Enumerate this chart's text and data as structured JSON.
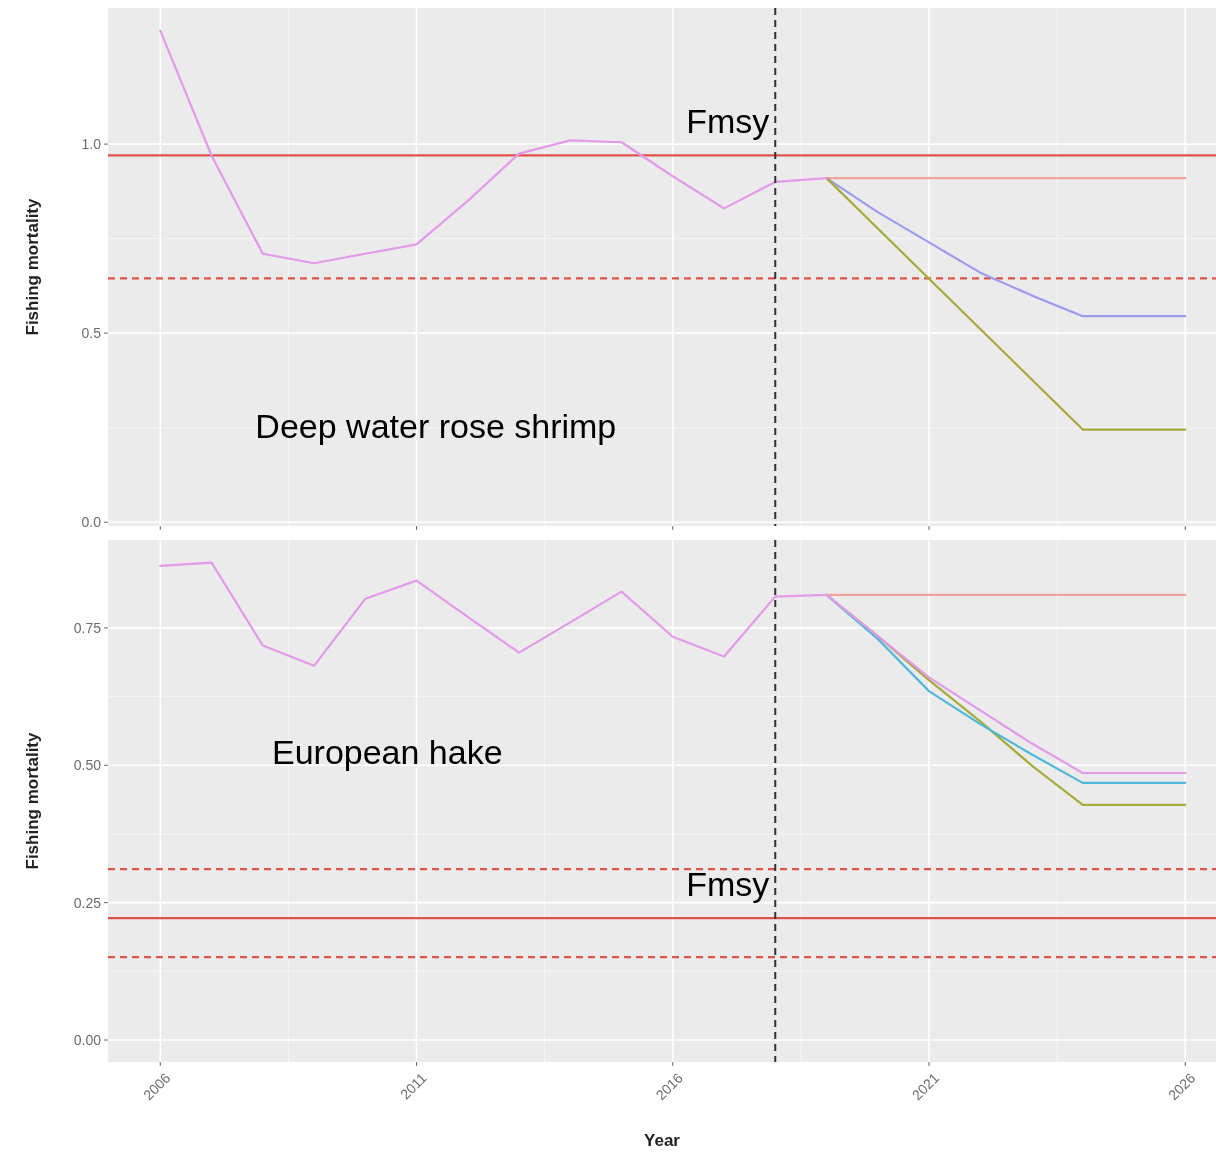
{
  "chart_data": [
    {
      "type": "line",
      "ylabel": "Fishing mortality",
      "annotations": [
        "Deep water rose shrimp"
      ],
      "xlim": [
        2004.98,
        2026.6
      ],
      "xticks": [
        2006,
        2011,
        2016,
        2021,
        2026
      ],
      "ylim": [
        -0.01,
        1.36
      ],
      "yticks": [
        {
          "value": 0,
          "label": "0.0"
        },
        {
          "value": 0.5,
          "label": "0.5"
        },
        {
          "value": 1,
          "label": "1.0"
        }
      ],
      "tick_labels": "y",
      "grid": true,
      "marker": "none",
      "line_style": "solid",
      "ref_lines": [
        {
          "axis": "y",
          "value": 0.97,
          "label": "Fmsy",
          "color": "#e0524a"
        },
        {
          "axis": "y",
          "value": 0.645,
          "color": "#e0524a",
          "line_style": "dashed"
        },
        {
          "axis": "x",
          "value": 2018,
          "color": "#333333",
          "line_style": "dashed"
        }
      ],
      "series": [
        {
          "color": "#f4a39c",
          "x": [
            2019,
            2020,
            2021,
            2022,
            2023,
            2024,
            2025,
            2026
          ],
          "values": [
            0.91,
            0.91,
            0.91,
            0.91,
            0.91,
            0.91,
            0.91,
            0.91
          ]
        },
        {
          "color": "#9b9cee",
          "x": [
            2019,
            2020,
            2021,
            2022,
            2023,
            2024,
            2025,
            2026
          ],
          "values": [
            0.91,
            0.82,
            0.74,
            0.66,
            0.6,
            0.545,
            0.545,
            0.545
          ]
        },
        {
          "color": "#a6aa3c",
          "x": [
            2019,
            2020,
            2021,
            2022,
            2023,
            2024,
            2025,
            2026
          ],
          "values": [
            0.91,
            0.777,
            0.644,
            0.511,
            0.378,
            0.245,
            0.245,
            0.245
          ]
        },
        {
          "color": "#e29ae9",
          "x": [
            2006,
            2007,
            2008,
            2009,
            2010,
            2011,
            2012,
            2013,
            2014,
            2015,
            2016,
            2017,
            2018,
            2019
          ],
          "values": [
            1.3,
            0.97,
            0.71,
            0.685,
            0.71,
            0.735,
            0.85,
            0.975,
            1.01,
            1.005,
            0.915,
            0.83,
            0.9,
            0.91
          ]
        }
      ]
    },
    {
      "type": "line",
      "xlabel": "Year",
      "ylabel": "Fishing mortality",
      "annotations": [
        "European hake"
      ],
      "xlim": [
        2004.98,
        2026.6
      ],
      "xticks": [
        2006,
        2011,
        2016,
        2021,
        2026
      ],
      "ylim": [
        -0.04,
        0.91
      ],
      "yticks": [
        {
          "value": 0,
          "label": "0.00"
        },
        0.25,
        {
          "value": 0.5,
          "label": "0.50"
        },
        0.75
      ],
      "grid": true,
      "marker": "none",
      "line_style": "solid",
      "ref_lines": [
        {
          "axis": "y",
          "value": 0.222,
          "label": "Fmsy",
          "color": "#e0524a"
        },
        {
          "axis": "y",
          "value": 0.311,
          "color": "#e0524a",
          "line_style": "dashed"
        },
        {
          "axis": "y",
          "value": 0.151,
          "color": "#e0524a",
          "line_style": "dashed"
        },
        {
          "axis": "x",
          "value": 2018,
          "color": "#333333",
          "line_style": "dashed"
        }
      ],
      "series": [
        {
          "color": "#f4a39c",
          "x": [
            2019,
            2020,
            2021,
            2022,
            2023,
            2024,
            2025,
            2026
          ],
          "values": [
            0.81,
            0.81,
            0.81,
            0.81,
            0.81,
            0.81,
            0.81,
            0.81
          ]
        },
        {
          "color": "#a6aa3c",
          "x": [
            2019,
            2020,
            2021,
            2022,
            2023,
            2024,
            2025,
            2026
          ],
          "values": [
            0.81,
            0.735,
            0.655,
            0.58,
            0.5,
            0.428,
            0.428,
            0.428
          ]
        },
        {
          "color": "#4fb8d8",
          "x": [
            2019,
            2020,
            2021,
            2022,
            2023,
            2024,
            2025,
            2026
          ],
          "values": [
            0.81,
            0.73,
            0.635,
            0.575,
            0.52,
            0.468,
            0.468,
            0.468
          ]
        },
        {
          "color": "#e29ae9",
          "x": [
            2019,
            2020,
            2021,
            2022,
            2023,
            2024,
            2025,
            2026
          ],
          "values": [
            0.81,
            0.735,
            0.66,
            0.6,
            0.54,
            0.486,
            0.486,
            0.486
          ]
        },
        {
          "color": "#e29ae9",
          "x": [
            2006,
            2007,
            2008,
            2009,
            2010,
            2011,
            2012,
            2013,
            2014,
            2015,
            2016,
            2017,
            2018,
            2019
          ],
          "values": [
            0.863,
            0.869,
            0.718,
            0.681,
            0.803,
            0.836,
            0.77,
            0.705,
            0.76,
            0.816,
            0.734,
            0.698,
            0.807,
            0.81
          ]
        }
      ]
    }
  ]
}
